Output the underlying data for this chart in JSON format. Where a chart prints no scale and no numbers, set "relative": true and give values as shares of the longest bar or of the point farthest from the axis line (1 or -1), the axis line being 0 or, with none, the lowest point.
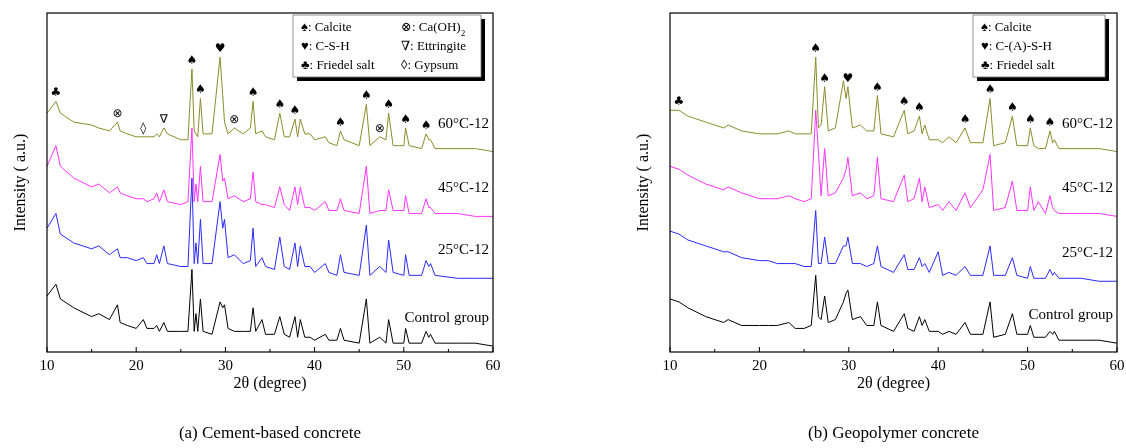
{
  "chart_data": [
    {
      "type": "line",
      "title": "(a) Cement-based concrete",
      "xlabel": "2θ (degree)",
      "ylabel": "Intensity ( a.u.)",
      "relative": true,
      "legend": false,
      "marker": "none",
      "line_style": "solid",
      "xlim": [
        10,
        60
      ],
      "xticks": [
        10,
        {
          "value": 15,
          "label": null
        },
        20,
        {
          "value": 25,
          "label": null
        },
        30,
        {
          "value": 35,
          "label": null
        },
        40,
        {
          "value": 45,
          "label": null
        },
        50,
        {
          "value": 55,
          "label": null
        },
        60
      ],
      "x": [
        10,
        11,
        11.5,
        13,
        15,
        15.8,
        17,
        17.9,
        18.2,
        19,
        20,
        20.8,
        21.2,
        22,
        22.3,
        22.6,
        23.1,
        23.5,
        25,
        25.8,
        26.25,
        26.5,
        26.7,
        26.9,
        27.2,
        27.5,
        28.5,
        29.4,
        29.7,
        29.9,
        30.3,
        31,
        32,
        32.8,
        33.1,
        33.4,
        34.1,
        34.5,
        35.5,
        36.1,
        36.6,
        37.2,
        37.8,
        38.1,
        38.4,
        38.9,
        39.5,
        40,
        41.2,
        41.6,
        42.5,
        42.9,
        43.3,
        45,
        45.8,
        46.2,
        47.3,
        48,
        48.3,
        48.8,
        50,
        50.2,
        50.6,
        52,
        52.5,
        52.8,
        53,
        53.5,
        56,
        58,
        60
      ],
      "series": [
        {
          "name": "Control group",
          "color": "#000000",
          "values": [
            0.19,
            0.23,
            0.18,
            0.15,
            0.12,
            0.13,
            0.11,
            0.16,
            0.1,
            0.09,
            0.08,
            0.11,
            0.08,
            0.08,
            0.09,
            0.07,
            0.1,
            0.07,
            0.07,
            0.07,
            0.28,
            0.07,
            0.13,
            0.07,
            0.18,
            0.07,
            0.06,
            0.17,
            0.15,
            0.16,
            0.08,
            0.07,
            0.07,
            0.07,
            0.15,
            0.07,
            0.11,
            0.06,
            0.06,
            0.12,
            0.06,
            0.05,
            0.12,
            0.05,
            0.11,
            0.05,
            0.05,
            0.04,
            0.06,
            0.04,
            0.04,
            0.08,
            0.04,
            0.03,
            0.18,
            0.03,
            0.05,
            0.03,
            0.11,
            0.03,
            0.03,
            0.08,
            0.03,
            0.03,
            0.07,
            0.05,
            0.06,
            0.03,
            0.03,
            0.03,
            0.02
          ]
        },
        {
          "name": "25°C-12",
          "color": "#2a2aff",
          "values": [
            0.42,
            0.47,
            0.4,
            0.37,
            0.35,
            0.36,
            0.33,
            0.35,
            0.32,
            0.32,
            0.31,
            0.32,
            0.3,
            0.3,
            0.33,
            0.3,
            0.36,
            0.3,
            0.29,
            0.29,
            0.59,
            0.3,
            0.37,
            0.3,
            0.45,
            0.3,
            0.3,
            0.51,
            0.42,
            0.45,
            0.32,
            0.33,
            0.3,
            0.31,
            0.42,
            0.29,
            0.32,
            0.29,
            0.28,
            0.39,
            0.29,
            0.28,
            0.37,
            0.29,
            0.36,
            0.29,
            0.29,
            0.27,
            0.3,
            0.27,
            0.26,
            0.33,
            0.27,
            0.26,
            0.43,
            0.26,
            0.29,
            0.27,
            0.38,
            0.27,
            0.26,
            0.33,
            0.26,
            0.26,
            0.31,
            0.29,
            0.3,
            0.26,
            0.25,
            0.25,
            0.25
          ]
        },
        {
          "name": "45°C-12",
          "color": "#ff33ff",
          "values": [
            0.63,
            0.7,
            0.63,
            0.59,
            0.56,
            0.57,
            0.54,
            0.56,
            0.54,
            0.53,
            0.52,
            0.52,
            0.51,
            0.52,
            0.54,
            0.51,
            0.55,
            0.51,
            0.5,
            0.51,
            0.76,
            0.51,
            0.57,
            0.51,
            0.63,
            0.51,
            0.51,
            0.67,
            0.58,
            0.59,
            0.52,
            0.53,
            0.51,
            0.52,
            0.61,
            0.51,
            0.5,
            0.5,
            0.49,
            0.56,
            0.5,
            0.48,
            0.56,
            0.5,
            0.56,
            0.49,
            0.49,
            0.48,
            0.51,
            0.48,
            0.48,
            0.52,
            0.48,
            0.47,
            0.63,
            0.47,
            0.48,
            0.48,
            0.55,
            0.48,
            0.48,
            0.53,
            0.47,
            0.47,
            0.52,
            0.49,
            0.49,
            0.47,
            0.47,
            0.46,
            0.46
          ]
        },
        {
          "name": "60°C-12",
          "color": "#8c8c2c",
          "values": [
            0.81,
            0.85,
            0.81,
            0.78,
            0.77,
            0.76,
            0.75,
            0.78,
            0.75,
            0.74,
            0.73,
            0.73,
            0.73,
            0.73,
            0.74,
            0.73,
            0.76,
            0.74,
            0.72,
            0.72,
            0.96,
            0.75,
            0.74,
            0.73,
            0.86,
            0.74,
            0.74,
            1,
            0.87,
            0.78,
            0.74,
            0.76,
            0.74,
            0.76,
            0.85,
            0.74,
            0.75,
            0.73,
            0.72,
            0.81,
            0.73,
            0.73,
            0.79,
            0.73,
            0.79,
            0.74,
            0.74,
            0.72,
            0.73,
            0.71,
            0.7,
            0.75,
            0.72,
            0.7,
            0.84,
            0.7,
            0.73,
            0.72,
            0.81,
            0.7,
            0.7,
            0.76,
            0.7,
            0.69,
            0.74,
            0.72,
            0.72,
            0.69,
            0.69,
            0.69,
            0.68
          ]
        }
      ],
      "annotations": [
        "♠: Calcite",
        "⊗: Ca(OH)$_{2}$",
        "♥: C-S-H",
        "∇: Ettringite",
        "♣: Friedel salt",
        "◊: Gypsum",
        {
          "text": "♣",
          "x": 11,
          "y": 0.85
        },
        {
          "text": "⊗",
          "x": 17.9,
          "y": 0.78
        },
        {
          "text": "◊",
          "x": 20.8,
          "y": 0.73
        },
        {
          "text": "∇",
          "x": 23.1,
          "y": 0.76
        },
        {
          "text": "♠",
          "x": 26.25,
          "y": 0.96
        },
        {
          "text": "♠",
          "x": 27.2,
          "y": 0.86
        },
        {
          "text": "♥",
          "x": 29.4,
          "y": 1
        },
        {
          "text": "⊗",
          "x": 31,
          "y": 0.76
        },
        {
          "text": "♠",
          "x": 33.1,
          "y": 0.85
        },
        {
          "text": "♠",
          "x": 36.1,
          "y": 0.81
        },
        {
          "text": "♠",
          "x": 37.8,
          "y": 0.79
        },
        {
          "text": "♠",
          "x": 42.9,
          "y": 0.75
        },
        {
          "text": "♠",
          "x": 45.8,
          "y": 0.84
        },
        {
          "text": "⊗",
          "x": 47.3,
          "y": 0.73
        },
        {
          "text": "♠",
          "x": 48.3,
          "y": 0.81
        },
        {
          "text": "♠",
          "x": 50.2,
          "y": 0.76
        },
        {
          "text": "♠",
          "x": 52.5,
          "y": 0.74
        }
      ]
    },
    {
      "type": "line",
      "title": "(b) Geopolymer concrete",
      "xlabel": "2θ (degree)",
      "ylabel": "Intensity ( a.u.)",
      "relative": true,
      "legend": false,
      "marker": "none",
      "line_style": "solid",
      "xlim": [
        10,
        60
      ],
      "xticks": [
        10,
        {
          "value": 15,
          "label": null
        },
        20,
        {
          "value": 25,
          "label": null
        },
        30,
        {
          "value": 35,
          "label": null
        },
        40,
        {
          "value": 45,
          "label": null
        },
        50,
        {
          "value": 55,
          "label": null
        },
        60
      ],
      "x": [
        10,
        11,
        12,
        14,
        16,
        16.5,
        18,
        20,
        21,
        22,
        23.3,
        24,
        25,
        25.8,
        26.3,
        26.6,
        26.9,
        27.3,
        27.7,
        28.5,
        29.4,
        29.7,
        29.9,
        30.4,
        31.3,
        32,
        32.8,
        33.2,
        33.6,
        35,
        36.2,
        36.6,
        37.3,
        37.9,
        38.2,
        38.5,
        39,
        40,
        40.5,
        41.2,
        42,
        43,
        43.6,
        45,
        45.8,
        46.2,
        47.5,
        48.3,
        48.8,
        50,
        50.3,
        50.7,
        51.2,
        52,
        52.5,
        52.8,
        53,
        53.5,
        56,
        58,
        60
      ],
      "series": [
        {
          "name": "Control group",
          "color": "#000000",
          "values": [
            0.18,
            0.17,
            0.15,
            0.12,
            0.1,
            0.11,
            0.09,
            0.09,
            0.09,
            0.09,
            0.1,
            0.08,
            0.08,
            0.09,
            0.26,
            0.12,
            0.11,
            0.19,
            0.1,
            0.11,
            0.17,
            0.2,
            0.21,
            0.11,
            0.12,
            0.09,
            0.09,
            0.17,
            0.09,
            0.07,
            0.13,
            0.08,
            0.07,
            0.12,
            0.09,
            0.11,
            0.07,
            0.07,
            0.06,
            0.07,
            0.06,
            0.1,
            0.06,
            0.06,
            0.17,
            0.05,
            0.06,
            0.13,
            0.06,
            0.06,
            0.09,
            0.05,
            0.05,
            0.05,
            0.07,
            0.06,
            0.07,
            0.04,
            0.04,
            0.04,
            0.03
          ]
        },
        {
          "name": "25°C-12",
          "color": "#2a2aff",
          "values": [
            0.41,
            0.4,
            0.38,
            0.36,
            0.34,
            0.34,
            0.32,
            0.31,
            0.31,
            0.3,
            0.3,
            0.3,
            0.29,
            0.29,
            0.48,
            0.3,
            0.3,
            0.39,
            0.3,
            0.3,
            0.36,
            0.36,
            0.39,
            0.3,
            0.3,
            0.29,
            0.3,
            0.36,
            0.29,
            0.27,
            0.33,
            0.28,
            0.28,
            0.32,
            0.29,
            0.3,
            0.27,
            0.34,
            0.26,
            0.27,
            0.26,
            0.29,
            0.26,
            0.26,
            0.36,
            0.26,
            0.26,
            0.32,
            0.26,
            0.25,
            0.29,
            0.25,
            0.25,
            0.25,
            0.28,
            0.26,
            0.27,
            0.25,
            0.25,
            0.24,
            0.24
          ]
        },
        {
          "name": "45°C-12",
          "color": "#ff33ff",
          "values": [
            0.63,
            0.62,
            0.6,
            0.57,
            0.55,
            0.56,
            0.54,
            0.52,
            0.52,
            0.52,
            0.53,
            0.52,
            0.51,
            0.52,
            0.82,
            0.68,
            0.53,
            0.69,
            0.53,
            0.54,
            0.59,
            0.62,
            0.66,
            0.53,
            0.54,
            0.52,
            0.53,
            0.66,
            0.52,
            0.51,
            0.6,
            0.51,
            0.52,
            0.59,
            0.51,
            0.56,
            0.49,
            0.5,
            0.48,
            0.51,
            0.48,
            0.54,
            0.49,
            0.55,
            0.67,
            0.48,
            0.49,
            0.58,
            0.48,
            0.48,
            0.56,
            0.48,
            0.51,
            0.47,
            0.53,
            0.49,
            0.48,
            0.47,
            0.47,
            0.47,
            0.46
          ]
        },
        {
          "name": "60°C-12",
          "color": "#8c8c2c",
          "values": [
            0.82,
            0.82,
            0.8,
            0.78,
            0.76,
            0.77,
            0.75,
            0.74,
            0.74,
            0.74,
            0.75,
            0.74,
            0.74,
            0.74,
            1,
            0.76,
            0.77,
            0.9,
            0.75,
            0.76,
            0.92,
            0.86,
            0.9,
            0.76,
            0.77,
            0.75,
            0.75,
            0.87,
            0.74,
            0.73,
            0.82,
            0.74,
            0.75,
            0.8,
            0.74,
            0.77,
            0.72,
            0.72,
            0.71,
            0.73,
            0.71,
            0.76,
            0.71,
            0.71,
            0.86,
            0.7,
            0.71,
            0.8,
            0.7,
            0.7,
            0.76,
            0.7,
            0.69,
            0.69,
            0.75,
            0.71,
            0.72,
            0.69,
            0.69,
            0.69,
            0.68
          ]
        }
      ],
      "annotations": [
        "♠: Calcite",
        "♥: C-(A)-S-H",
        "♣: Friedel salt",
        {
          "text": "♣",
          "x": 11,
          "y": 0.82
        },
        {
          "text": "♠",
          "x": 26.3,
          "y": 1
        },
        {
          "text": "♠",
          "x": 27.3,
          "y": 0.9
        },
        {
          "text": "♥",
          "x": 29.9,
          "y": 0.9
        },
        {
          "text": "♠",
          "x": 33.2,
          "y": 0.87
        },
        {
          "text": "♠",
          "x": 36.2,
          "y": 0.82
        },
        {
          "text": "♠",
          "x": 37.9,
          "y": 0.8
        },
        {
          "text": "♠",
          "x": 43,
          "y": 0.76
        },
        {
          "text": "♠",
          "x": 45.8,
          "y": 0.86
        },
        {
          "text": "♠",
          "x": 48.3,
          "y": 0.8
        },
        {
          "text": "♠",
          "x": 50.3,
          "y": 0.76
        },
        {
          "text": "♠",
          "x": 52.5,
          "y": 0.75
        }
      ]
    }
  ]
}
